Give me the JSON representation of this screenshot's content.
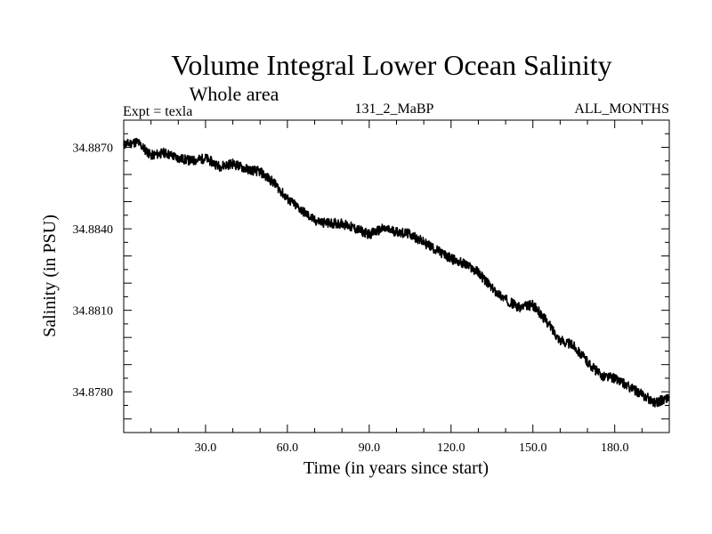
{
  "chart_data": {
    "type": "line",
    "title": "Volume Integral Lower Ocean Salinity",
    "subtitle": "Whole area",
    "expt_label": "Expt = texla",
    "run_label": "131_2_MaBP",
    "months_label": "ALL_MONTHS",
    "xlabel": "Time (in years since start)",
    "ylabel": "Salinity (in PSU)",
    "xlim": [
      0,
      200
    ],
    "ylim": [
      34.8765,
      34.888
    ],
    "x_ticks": [
      "30.0",
      "60.0",
      "90.0",
      "120.0",
      "150.0",
      "180.0"
    ],
    "y_ticks": [
      "34.8870",
      "34.8840",
      "34.8810",
      "34.8780"
    ],
    "series": [
      {
        "name": "Salinity",
        "x": [
          0,
          5,
          10,
          15,
          20,
          25,
          30,
          35,
          40,
          45,
          50,
          55,
          60,
          65,
          70,
          75,
          80,
          85,
          90,
          95,
          100,
          105,
          110,
          115,
          120,
          125,
          130,
          135,
          140,
          145,
          150,
          155,
          160,
          165,
          170,
          175,
          180,
          185,
          190,
          195,
          200
        ],
        "values": [
          34.8871,
          34.8872,
          34.8867,
          34.8868,
          34.8866,
          34.8865,
          34.8866,
          34.8863,
          34.8864,
          34.8862,
          34.8861,
          34.8857,
          34.8851,
          34.8847,
          34.8843,
          34.8842,
          34.8842,
          34.884,
          34.8838,
          34.884,
          34.8839,
          34.8838,
          34.8835,
          34.8832,
          34.8829,
          34.8827,
          34.8824,
          34.8818,
          34.8814,
          34.8811,
          34.8812,
          34.8806,
          34.8799,
          34.8797,
          34.8791,
          34.8786,
          34.8785,
          34.8782,
          34.8779,
          34.8776,
          34.8778
        ]
      }
    ]
  }
}
